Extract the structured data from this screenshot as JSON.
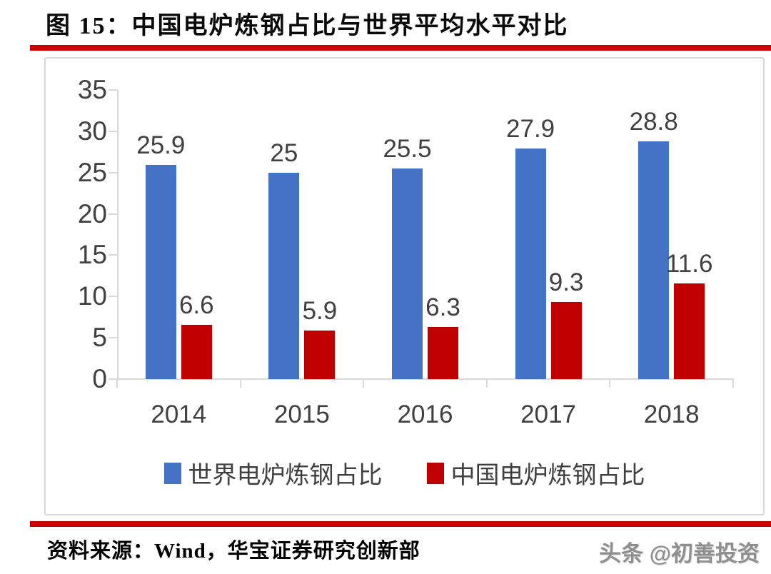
{
  "figure": {
    "title": "图 15：中国电炉炼钢占比与世界平均水平对比",
    "source": "资料来源：Wind，华宝证券研究创新部",
    "watermark": "头条 @初善投资"
  },
  "colors": {
    "world_series": "#4472C4",
    "china_series": "#C00000",
    "rule": "#CC0000",
    "axis_line": "#D9D9D9",
    "axis_text": "#404040"
  },
  "chart_data": {
    "type": "bar",
    "title": "中国电炉炼钢占比与世界平均水平对比",
    "categories": [
      "2014",
      "2015",
      "2016",
      "2017",
      "2018"
    ],
    "series": [
      {
        "name": "世界电炉炼钢占比",
        "color": "#4472C4",
        "values": [
          25.9,
          25,
          25.5,
          27.9,
          28.8
        ],
        "labels": [
          "25.9",
          "25",
          "25.5",
          "27.9",
          "28.8"
        ]
      },
      {
        "name": "中国电炉炼钢占比",
        "color": "#C00000",
        "values": [
          6.6,
          5.9,
          6.3,
          9.3,
          11.6
        ],
        "labels": [
          "6.6",
          "5.9",
          "6.3",
          "9.3",
          "11.6"
        ]
      }
    ],
    "xlabel": "",
    "ylabel": "",
    "ylim": [
      0,
      35
    ],
    "yticks": [
      35,
      30,
      25,
      20,
      15,
      10,
      5,
      0
    ],
    "grid": false,
    "data_labels": true,
    "legend_position": "bottom"
  }
}
